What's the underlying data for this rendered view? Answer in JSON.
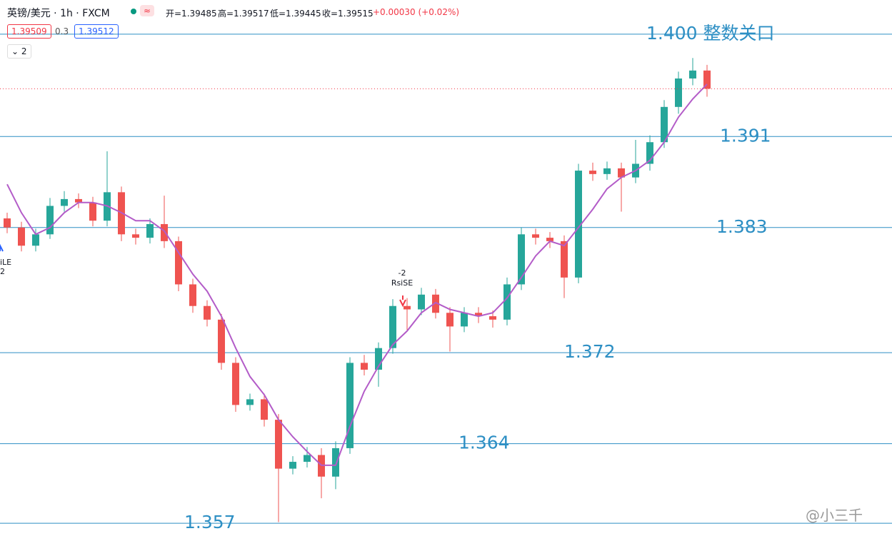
{
  "header": {
    "symbol": "英镑/美元 · 1h · FXCM",
    "ohlc": [
      "开=1.39485",
      "高=1.39517",
      "低=1.39445",
      "收=1.39515",
      "+0.00030 (+0.02%)"
    ],
    "bid": "1.39509",
    "spread": "0.3",
    "ask": "1.39512",
    "indicator_count": "2"
  },
  "watermark": "@小三千",
  "chart_data": {
    "type": "candlestick",
    "categories": [
      null,
      null,
      null,
      null,
      null,
      null,
      null,
      null,
      null,
      null,
      null,
      null,
      null,
      null,
      null,
      null,
      null,
      null,
      null,
      null,
      null,
      null,
      null,
      null,
      null,
      null,
      null,
      null,
      null,
      null,
      null,
      null,
      null,
      null,
      null,
      null,
      null,
      null,
      null,
      null,
      null,
      null,
      null,
      null,
      null,
      null,
      null,
      null,
      null,
      null
    ],
    "open": [
      1.3838,
      1.383,
      1.3814,
      1.3824,
      1.3849,
      1.3855,
      1.3852,
      1.3836,
      1.3861,
      1.3824,
      1.3821,
      1.3833,
      1.3818,
      1.378,
      1.3761,
      1.3749,
      1.3711,
      1.3674,
      1.3679,
      1.3661,
      1.3618,
      1.3624,
      1.363,
      1.3611,
      1.3636,
      1.3711,
      1.3705,
      1.3724,
      1.3761,
      1.3758,
      1.3771,
      1.3755,
      1.3743,
      1.3755,
      1.3752,
      1.3749,
      1.378,
      1.3824,
      1.3821,
      1.3818,
      1.3786,
      1.388,
      1.3877,
      1.3882,
      1.3874,
      1.3886,
      1.3905,
      1.3936,
      1.3961,
      1.3968
    ],
    "high": [
      1.3843,
      1.3835,
      1.3829,
      1.3856,
      1.3862,
      1.386,
      1.3857,
      1.3897,
      1.3866,
      1.3829,
      1.3838,
      1.3858,
      1.3822,
      1.3785,
      1.3766,
      1.3754,
      1.3716,
      1.3684,
      1.3684,
      1.3666,
      1.3629,
      1.3637,
      1.3636,
      1.3642,
      1.3716,
      1.3718,
      1.3729,
      1.3767,
      1.3768,
      1.3777,
      1.3776,
      1.376,
      1.376,
      1.376,
      1.3757,
      1.3786,
      1.383,
      1.3829,
      1.3826,
      1.3823,
      1.3886,
      1.3887,
      1.3888,
      1.3887,
      1.3907,
      1.3911,
      1.3942,
      1.3967,
      1.3979,
      1.3973
    ],
    "low": [
      1.3825,
      1.3809,
      1.3809,
      1.382,
      1.3844,
      1.3847,
      1.3831,
      1.3831,
      1.3818,
      1.3815,
      1.3816,
      1.3812,
      1.3774,
      1.3755,
      1.3743,
      1.3705,
      1.3668,
      1.3669,
      1.3655,
      1.3571,
      1.3613,
      1.3619,
      1.3592,
      1.36,
      1.3631,
      1.37,
      1.369,
      1.3719,
      1.374,
      1.3753,
      1.375,
      1.3721,
      1.3738,
      1.3746,
      1.3742,
      1.3744,
      1.3775,
      1.3815,
      1.3812,
      1.3768,
      1.3781,
      1.3871,
      1.3872,
      1.3844,
      1.3869,
      1.388,
      1.39,
      1.393,
      1.3955,
      1.3945
    ],
    "close": [
      1.383,
      1.3814,
      1.3824,
      1.3849,
      1.3855,
      1.3852,
      1.3836,
      1.3861,
      1.3824,
      1.3821,
      1.3833,
      1.3818,
      1.378,
      1.3761,
      1.3749,
      1.3711,
      1.3674,
      1.3679,
      1.3661,
      1.3618,
      1.3624,
      1.363,
      1.3611,
      1.3636,
      1.3711,
      1.3705,
      1.3724,
      1.3761,
      1.3758,
      1.3771,
      1.3755,
      1.3743,
      1.3755,
      1.3752,
      1.3749,
      1.378,
      1.3824,
      1.3821,
      1.3818,
      1.3786,
      1.388,
      1.3877,
      1.3882,
      1.3874,
      1.3886,
      1.3905,
      1.3936,
      1.3961,
      1.3968,
      1.3952
    ],
    "ma": [
      1.3868,
      1.3843,
      1.3824,
      1.383,
      1.3843,
      1.3852,
      1.3852,
      1.3849,
      1.3843,
      1.3836,
      1.3836,
      1.3827,
      1.3808,
      1.3789,
      1.3774,
      1.3752,
      1.3724,
      1.3699,
      1.3683,
      1.3661,
      1.3646,
      1.3633,
      1.3621,
      1.3621,
      1.3655,
      1.3686,
      1.3708,
      1.3727,
      1.3739,
      1.3755,
      1.3764,
      1.3758,
      1.3755,
      1.3752,
      1.3755,
      1.3768,
      1.3786,
      1.3805,
      1.3818,
      1.3814,
      1.383,
      1.3846,
      1.3864,
      1.3874,
      1.388,
      1.3889,
      1.3905,
      1.3927,
      1.3943,
      1.3956
    ],
    "up_color": "#26a69a",
    "down_color": "#ef5350",
    "ma_color": "#b35cc8",
    "level_color": "#2d8fc4",
    "ylim": [
      1.355,
      1.403
    ],
    "levels": [
      {
        "value": 1.4,
        "label": "1.400 整数关口"
      },
      {
        "value": 1.391,
        "label": "1.391"
      },
      {
        "value": 1.383,
        "label": "1.383"
      },
      {
        "value": 1.372,
        "label": "1.372"
      },
      {
        "value": 1.364,
        "label": "1.364"
      },
      {
        "value": 1.357,
        "label": "1.357"
      }
    ],
    "annotations": [
      "-2",
      "RsiSE",
      "iLE",
      "2"
    ]
  }
}
